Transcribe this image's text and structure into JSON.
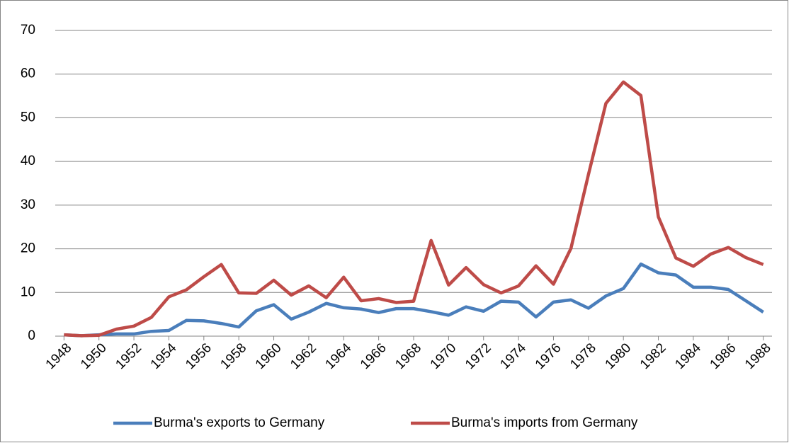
{
  "chart_data": {
    "type": "line",
    "x": [
      1948,
      1949,
      1950,
      1951,
      1952,
      1953,
      1954,
      1955,
      1956,
      1957,
      1958,
      1959,
      1960,
      1961,
      1962,
      1963,
      1964,
      1965,
      1966,
      1967,
      1968,
      1969,
      1970,
      1971,
      1972,
      1973,
      1974,
      1975,
      1976,
      1977,
      1978,
      1979,
      1980,
      1981,
      1982,
      1983,
      1984,
      1985,
      1986,
      1987,
      1988
    ],
    "series": [
      {
        "name": "Burma's exports to Germany",
        "color": "#4a7ebb",
        "values": [
          0.3,
          0.1,
          0.3,
          0.5,
          0.5,
          1.1,
          1.3,
          3.6,
          3.5,
          2.9,
          2.1,
          5.8,
          7.2,
          3.9,
          5.5,
          7.5,
          6.5,
          6.2,
          5.4,
          6.3,
          6.3,
          5.6,
          4.8,
          6.7,
          5.7,
          8.0,
          7.8,
          4.4,
          7.8,
          8.3,
          6.4,
          9.2,
          10.9,
          16.5,
          14.5,
          14.0,
          11.2,
          11.2,
          10.7,
          8.1,
          5.5
        ]
      },
      {
        "name": "Burma's imports from Germany",
        "color": "#be4b48",
        "values": [
          0.3,
          0.1,
          0.2,
          1.6,
          2.3,
          4.3,
          9.0,
          10.6,
          13.6,
          16.4,
          9.9,
          9.8,
          12.8,
          9.4,
          11.5,
          8.8,
          13.5,
          8.1,
          8.6,
          7.7,
          8.0,
          21.9,
          11.7,
          15.7,
          11.8,
          9.9,
          11.5,
          16.1,
          11.9,
          20.1,
          37.0,
          53.3,
          58.2,
          55.1,
          27.3,
          17.9,
          16.0,
          18.8,
          20.3,
          18.0,
          16.4
        ]
      }
    ],
    "xlim": [
      1947.5,
      1988.5
    ],
    "xticks": [
      1948,
      1950,
      1952,
      1954,
      1956,
      1958,
      1960,
      1962,
      1964,
      1966,
      1968,
      1970,
      1972,
      1974,
      1976,
      1978,
      1980,
      1982,
      1984,
      1986,
      1988
    ],
    "ylim": [
      0,
      70
    ],
    "yticks": [
      0,
      10,
      20,
      30,
      40,
      50,
      60,
      70
    ],
    "grid": true,
    "legend": "bottom"
  }
}
